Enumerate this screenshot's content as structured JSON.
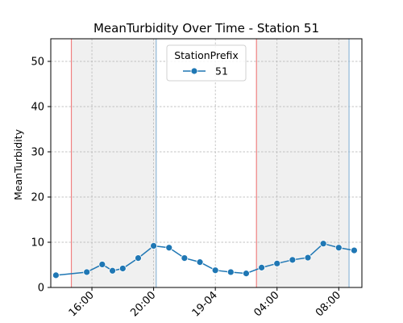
{
  "chart_data": {
    "type": "line",
    "title": "MeanTurbidity Over Time - Station 51",
    "xlabel": "",
    "ylabel": "MeanTurbidity",
    "xlim": [
      "2024-04-18 13:20",
      "2024-04-19 09:30"
    ],
    "ylim": [
      0,
      55
    ],
    "x_ticks": [
      {
        "t": "2024-04-18 16:00",
        "label": "16:00"
      },
      {
        "t": "2024-04-18 20:00",
        "label": "20:00"
      },
      {
        "t": "2024-04-19 00:00",
        "label": "19-04"
      },
      {
        "t": "2024-04-19 04:00",
        "label": "04:00"
      },
      {
        "t": "2024-04-19 08:00",
        "label": "08:00"
      }
    ],
    "y_ticks": [
      0,
      10,
      20,
      30,
      40,
      50
    ],
    "grid": true,
    "legend": {
      "title": "StationPrefix",
      "placement": "top-center"
    },
    "series": [
      {
        "name": "51",
        "color": "#1f77b4",
        "marker": "circle",
        "points": [
          {
            "t": "2024-04-18 13:40",
            "y": 2.7
          },
          {
            "t": "2024-04-18 15:40",
            "y": 3.4
          },
          {
            "t": "2024-04-18 16:40",
            "y": 5.1
          },
          {
            "t": "2024-04-18 17:20",
            "y": 3.7
          },
          {
            "t": "2024-04-18 18:00",
            "y": 4.2
          },
          {
            "t": "2024-04-18 19:00",
            "y": 6.5
          },
          {
            "t": "2024-04-18 20:00",
            "y": 9.2
          },
          {
            "t": "2024-04-18 21:00",
            "y": 8.8
          },
          {
            "t": "2024-04-18 22:00",
            "y": 6.5
          },
          {
            "t": "2024-04-18 23:00",
            "y": 5.6
          },
          {
            "t": "2024-04-19 00:00",
            "y": 3.8
          },
          {
            "t": "2024-04-19 01:00",
            "y": 3.4
          },
          {
            "t": "2024-04-19 02:00",
            "y": 3.1
          },
          {
            "t": "2024-04-19 03:00",
            "y": 4.4
          },
          {
            "t": "2024-04-19 04:00",
            "y": 5.3
          },
          {
            "t": "2024-04-19 05:00",
            "y": 6.1
          },
          {
            "t": "2024-04-19 06:00",
            "y": 6.6
          },
          {
            "t": "2024-04-19 07:00",
            "y": 9.7
          },
          {
            "t": "2024-04-19 08:00",
            "y": 8.8
          },
          {
            "t": "2024-04-19 09:00",
            "y": 8.2
          }
        ]
      }
    ],
    "shaded_regions": [
      {
        "start": "2024-04-18 14:40",
        "end": "2024-04-18 20:10",
        "color": "#f0f0f0"
      },
      {
        "start": "2024-04-19 02:40",
        "end": "2024-04-19 08:40",
        "color": "#f0f0f0"
      }
    ],
    "vlines": [
      {
        "t": "2024-04-18 14:40",
        "color": "#f08080"
      },
      {
        "t": "2024-04-18 20:10",
        "color": "#8fb8d8"
      },
      {
        "t": "2024-04-19 02:40",
        "color": "#f08080"
      },
      {
        "t": "2024-04-19 08:40",
        "color": "#8fb8d8"
      }
    ],
    "colors": {
      "grid": "#b0b0b0",
      "axes": "#000000",
      "series": "#1f77b4"
    }
  }
}
